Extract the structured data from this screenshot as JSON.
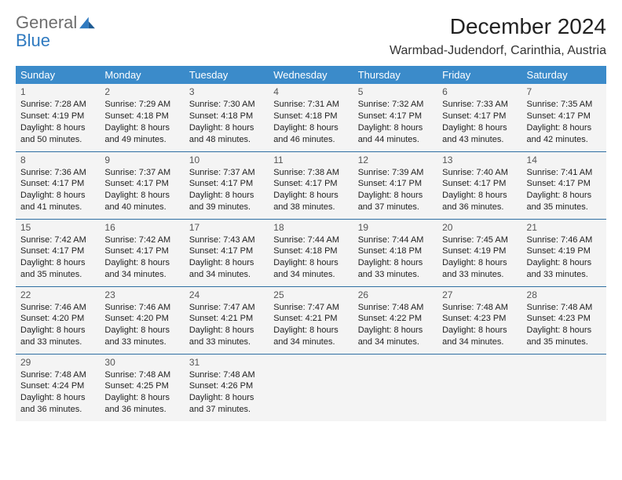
{
  "logo": {
    "text1": "General",
    "text2": "Blue"
  },
  "title": "December 2024",
  "location": "Warmbad-Judendorf, Carinthia, Austria",
  "dayHeaders": [
    "Sunday",
    "Monday",
    "Tuesday",
    "Wednesday",
    "Thursday",
    "Friday",
    "Saturday"
  ],
  "colors": {
    "headerBg": "#3b8bca",
    "headerText": "#ffffff",
    "cellBg": "#f4f4f4",
    "cellBorder": "#2f6fa3",
    "text": "#222222",
    "logoGray": "#6e6e6e",
    "logoBlue": "#2f7ac0"
  },
  "weeks": [
    [
      {
        "num": "1",
        "sunrise": "Sunrise: 7:28 AM",
        "sunset": "Sunset: 4:19 PM",
        "daylight": "Daylight: 8 hours and 50 minutes."
      },
      {
        "num": "2",
        "sunrise": "Sunrise: 7:29 AM",
        "sunset": "Sunset: 4:18 PM",
        "daylight": "Daylight: 8 hours and 49 minutes."
      },
      {
        "num": "3",
        "sunrise": "Sunrise: 7:30 AM",
        "sunset": "Sunset: 4:18 PM",
        "daylight": "Daylight: 8 hours and 48 minutes."
      },
      {
        "num": "4",
        "sunrise": "Sunrise: 7:31 AM",
        "sunset": "Sunset: 4:18 PM",
        "daylight": "Daylight: 8 hours and 46 minutes."
      },
      {
        "num": "5",
        "sunrise": "Sunrise: 7:32 AM",
        "sunset": "Sunset: 4:17 PM",
        "daylight": "Daylight: 8 hours and 44 minutes."
      },
      {
        "num": "6",
        "sunrise": "Sunrise: 7:33 AM",
        "sunset": "Sunset: 4:17 PM",
        "daylight": "Daylight: 8 hours and 43 minutes."
      },
      {
        "num": "7",
        "sunrise": "Sunrise: 7:35 AM",
        "sunset": "Sunset: 4:17 PM",
        "daylight": "Daylight: 8 hours and 42 minutes."
      }
    ],
    [
      {
        "num": "8",
        "sunrise": "Sunrise: 7:36 AM",
        "sunset": "Sunset: 4:17 PM",
        "daylight": "Daylight: 8 hours and 41 minutes."
      },
      {
        "num": "9",
        "sunrise": "Sunrise: 7:37 AM",
        "sunset": "Sunset: 4:17 PM",
        "daylight": "Daylight: 8 hours and 40 minutes."
      },
      {
        "num": "10",
        "sunrise": "Sunrise: 7:37 AM",
        "sunset": "Sunset: 4:17 PM",
        "daylight": "Daylight: 8 hours and 39 minutes."
      },
      {
        "num": "11",
        "sunrise": "Sunrise: 7:38 AM",
        "sunset": "Sunset: 4:17 PM",
        "daylight": "Daylight: 8 hours and 38 minutes."
      },
      {
        "num": "12",
        "sunrise": "Sunrise: 7:39 AM",
        "sunset": "Sunset: 4:17 PM",
        "daylight": "Daylight: 8 hours and 37 minutes."
      },
      {
        "num": "13",
        "sunrise": "Sunrise: 7:40 AM",
        "sunset": "Sunset: 4:17 PM",
        "daylight": "Daylight: 8 hours and 36 minutes."
      },
      {
        "num": "14",
        "sunrise": "Sunrise: 7:41 AM",
        "sunset": "Sunset: 4:17 PM",
        "daylight": "Daylight: 8 hours and 35 minutes."
      }
    ],
    [
      {
        "num": "15",
        "sunrise": "Sunrise: 7:42 AM",
        "sunset": "Sunset: 4:17 PM",
        "daylight": "Daylight: 8 hours and 35 minutes."
      },
      {
        "num": "16",
        "sunrise": "Sunrise: 7:42 AM",
        "sunset": "Sunset: 4:17 PM",
        "daylight": "Daylight: 8 hours and 34 minutes."
      },
      {
        "num": "17",
        "sunrise": "Sunrise: 7:43 AM",
        "sunset": "Sunset: 4:17 PM",
        "daylight": "Daylight: 8 hours and 34 minutes."
      },
      {
        "num": "18",
        "sunrise": "Sunrise: 7:44 AM",
        "sunset": "Sunset: 4:18 PM",
        "daylight": "Daylight: 8 hours and 34 minutes."
      },
      {
        "num": "19",
        "sunrise": "Sunrise: 7:44 AM",
        "sunset": "Sunset: 4:18 PM",
        "daylight": "Daylight: 8 hours and 33 minutes."
      },
      {
        "num": "20",
        "sunrise": "Sunrise: 7:45 AM",
        "sunset": "Sunset: 4:19 PM",
        "daylight": "Daylight: 8 hours and 33 minutes."
      },
      {
        "num": "21",
        "sunrise": "Sunrise: 7:46 AM",
        "sunset": "Sunset: 4:19 PM",
        "daylight": "Daylight: 8 hours and 33 minutes."
      }
    ],
    [
      {
        "num": "22",
        "sunrise": "Sunrise: 7:46 AM",
        "sunset": "Sunset: 4:20 PM",
        "daylight": "Daylight: 8 hours and 33 minutes."
      },
      {
        "num": "23",
        "sunrise": "Sunrise: 7:46 AM",
        "sunset": "Sunset: 4:20 PM",
        "daylight": "Daylight: 8 hours and 33 minutes."
      },
      {
        "num": "24",
        "sunrise": "Sunrise: 7:47 AM",
        "sunset": "Sunset: 4:21 PM",
        "daylight": "Daylight: 8 hours and 33 minutes."
      },
      {
        "num": "25",
        "sunrise": "Sunrise: 7:47 AM",
        "sunset": "Sunset: 4:21 PM",
        "daylight": "Daylight: 8 hours and 34 minutes."
      },
      {
        "num": "26",
        "sunrise": "Sunrise: 7:48 AM",
        "sunset": "Sunset: 4:22 PM",
        "daylight": "Daylight: 8 hours and 34 minutes."
      },
      {
        "num": "27",
        "sunrise": "Sunrise: 7:48 AM",
        "sunset": "Sunset: 4:23 PM",
        "daylight": "Daylight: 8 hours and 34 minutes."
      },
      {
        "num": "28",
        "sunrise": "Sunrise: 7:48 AM",
        "sunset": "Sunset: 4:23 PM",
        "daylight": "Daylight: 8 hours and 35 minutes."
      }
    ],
    [
      {
        "num": "29",
        "sunrise": "Sunrise: 7:48 AM",
        "sunset": "Sunset: 4:24 PM",
        "daylight": "Daylight: 8 hours and 36 minutes."
      },
      {
        "num": "30",
        "sunrise": "Sunrise: 7:48 AM",
        "sunset": "Sunset: 4:25 PM",
        "daylight": "Daylight: 8 hours and 36 minutes."
      },
      {
        "num": "31",
        "sunrise": "Sunrise: 7:48 AM",
        "sunset": "Sunset: 4:26 PM",
        "daylight": "Daylight: 8 hours and 37 minutes."
      },
      null,
      null,
      null,
      null
    ]
  ]
}
